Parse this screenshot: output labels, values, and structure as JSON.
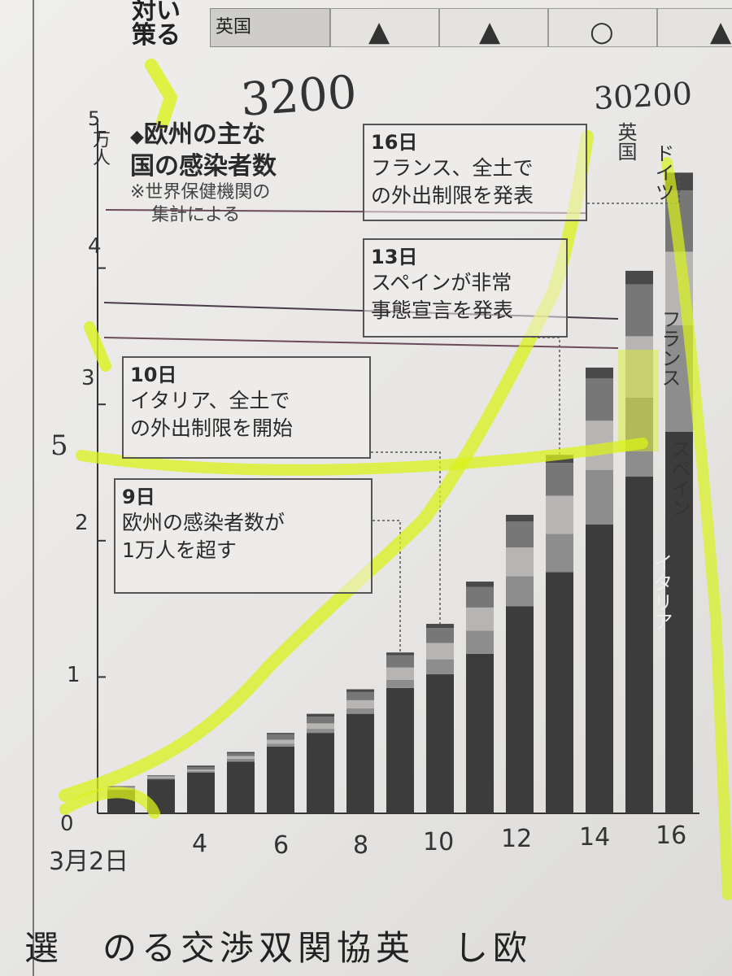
{
  "top_table": {
    "row_label_1": "対い",
    "row_label_2": "策る",
    "country": "英国",
    "symbols": [
      "▲",
      "▲",
      "○",
      "▲"
    ]
  },
  "chart_data": {
    "type": "bar",
    "stacked": true,
    "title": "欧州の主な国の感染者数",
    "title_lines": [
      "欧州の主な",
      "国の感染者数"
    ],
    "note": "※世界保健機関の集計による",
    "note_lines": [
      "※世界保健機関の",
      "集計による"
    ],
    "y_unit": "万人",
    "ylim": [
      0,
      5
    ],
    "y_ticks": [
      "0",
      "1",
      "2",
      "3",
      "4",
      "5"
    ],
    "x_ticks": [
      "3月2日",
      "4",
      "6",
      "8",
      "10",
      "12",
      "14",
      "16"
    ],
    "categories": [
      "2",
      "3",
      "4",
      "5",
      "6",
      "7",
      "8",
      "9",
      "10",
      "11",
      "12",
      "13",
      "14",
      "15",
      "16"
    ],
    "series": [
      {
        "name": "イタリア",
        "color": "#3d3c3d",
        "values": [
          0.17,
          0.25,
          0.3,
          0.38,
          0.49,
          0.59,
          0.73,
          0.92,
          1.02,
          1.17,
          1.52,
          1.77,
          2.12,
          2.47,
          2.8
        ]
      },
      {
        "name": "スペイン",
        "color": "#8e8d8d",
        "values": [
          0.01,
          0.01,
          0.01,
          0.02,
          0.02,
          0.03,
          0.04,
          0.06,
          0.11,
          0.17,
          0.22,
          0.28,
          0.4,
          0.58,
          0.78
        ]
      },
      {
        "name": "フランス",
        "color": "#b6b5b4",
        "values": [
          0.01,
          0.01,
          0.01,
          0.02,
          0.03,
          0.04,
          0.06,
          0.09,
          0.12,
          0.17,
          0.21,
          0.28,
          0.36,
          0.45,
          0.54
        ]
      },
      {
        "name": "ドイツ",
        "color": "#787778",
        "values": [
          0.01,
          0.01,
          0.02,
          0.02,
          0.04,
          0.05,
          0.06,
          0.09,
          0.11,
          0.15,
          0.19,
          0.24,
          0.31,
          0.38,
          0.45
        ]
      },
      {
        "name": "英国",
        "color": "#4a494a",
        "values": [
          0.0,
          0.0,
          0.01,
          0.01,
          0.01,
          0.02,
          0.02,
          0.02,
          0.03,
          0.04,
          0.05,
          0.06,
          0.08,
          0.1,
          0.13
        ]
      }
    ],
    "annotations": [
      {
        "date": "16日",
        "text_lines": [
          "フランス、全土で",
          "の外出制限を発表"
        ]
      },
      {
        "date": "13日",
        "text_lines": [
          "スペインが非常",
          "事態宣言を発表"
        ]
      },
      {
        "date": "10日",
        "text_lines": [
          "イタリア、全土で",
          "の外出制限を開始"
        ]
      },
      {
        "date": "9日",
        "text_lines": [
          "欧州の感染者数が",
          "1万人を超す"
        ]
      }
    ]
  },
  "handwriting": {
    "top_number_1": "3200",
    "top_number_2": "30200",
    "margin_mark": "5"
  },
  "bottom_text": "選　のる交渉双関協英　し欧"
}
